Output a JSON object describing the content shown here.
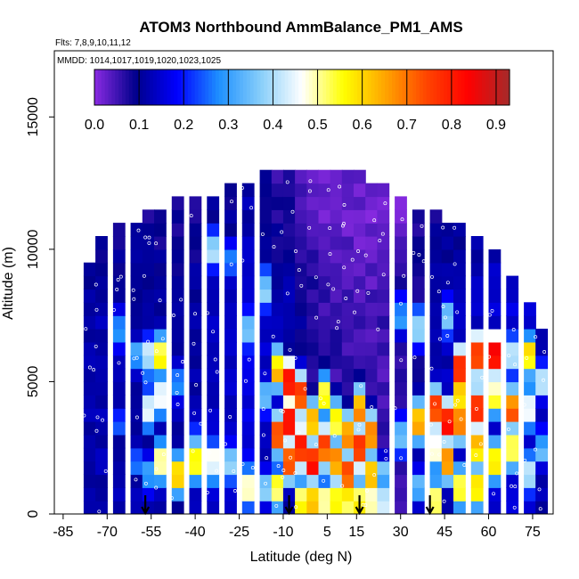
{
  "chart_data": {
    "type": "heatmap",
    "title": "ATOM3 Northbound AmmBalance_PM1_AMS",
    "flights_note": "Flts: 7,8,9,10,11,12",
    "dates_note": "MMDD: 1014,1017,1019,1020,1023,1025",
    "xlabel": "Latitude (deg N)",
    "ylabel": "Altitude (m)",
    "x_ticks": [
      -85,
      -70,
      -55,
      -40,
      -25,
      -10,
      5,
      15,
      30,
      45,
      60,
      75
    ],
    "y_ticks": [
      0,
      5000,
      10000,
      15000
    ],
    "xlim": [
      -88,
      82
    ],
    "ylim": [
      0,
      17500
    ],
    "colorbar": {
      "ticks": [
        0.0,
        0.1,
        0.2,
        0.3,
        0.4,
        0.5,
        0.6,
        0.7,
        0.8,
        0.9
      ],
      "tick_labels": [
        "0.0",
        "0.1",
        "0.2",
        "0.3",
        "0.4",
        "0.5",
        "0.6",
        "0.7",
        "0.8",
        "0.9"
      ],
      "range": [
        0,
        0.93
      ],
      "colors": [
        "#8a2be2",
        "#00008b",
        "#0000ff",
        "#1e90ff",
        "#87cefa",
        "#ffffff",
        "#ffff00",
        "#ffa500",
        "#ff4500",
        "#ff0000",
        "#a52a2a"
      ]
    },
    "arrows_latitude": [
      -57,
      -8,
      16,
      40
    ],
    "column_width_deg": 2,
    "row_height_m": 500,
    "columns": [
      {
        "lat": -76,
        "ztop": 9500,
        "bg": 0.12,
        "hot": []
      },
      {
        "lat": -72,
        "ztop": 10500,
        "bg": 0.12,
        "hot": []
      },
      {
        "lat": -66,
        "ztop": 11000,
        "bg": 0.12,
        "hot": [
          [
            7000,
            0.3
          ],
          [
            3500,
            0.22
          ]
        ]
      },
      {
        "lat": -60,
        "ztop": 11000,
        "bg": 0.12,
        "hot": [
          [
            6000,
            0.3
          ],
          [
            2000,
            0.25
          ]
        ]
      },
      {
        "lat": -56,
        "ztop": 11500,
        "bg": 0.12,
        "hot": [
          [
            6000,
            0.45
          ],
          [
            4000,
            0.5
          ],
          [
            1500,
            0.3
          ]
        ]
      },
      {
        "lat": -52,
        "ztop": 11500,
        "bg": 0.12,
        "hot": [
          [
            6000,
            0.6
          ],
          [
            4500,
            0.5
          ],
          [
            2000,
            0.55
          ]
        ]
      },
      {
        "lat": -46,
        "ztop": 12000,
        "bg": 0.12,
        "hot": [
          [
            5000,
            0.3
          ],
          [
            1500,
            0.65
          ]
        ]
      },
      {
        "lat": -40,
        "ztop": 12000,
        "bg": 0.12,
        "hot": [
          [
            3000,
            0.25
          ],
          [
            2000,
            0.6
          ]
        ]
      },
      {
        "lat": -34,
        "ztop": 12000,
        "bg": 0.14,
        "hot": [
          [
            10000,
            0.4
          ],
          [
            2000,
            0.5
          ]
        ]
      },
      {
        "lat": -28,
        "ztop": 12500,
        "bg": 0.14,
        "hot": [
          [
            9500,
            0.3
          ],
          [
            2000,
            0.4
          ]
        ]
      },
      {
        "lat": -22,
        "ztop": 12500,
        "bg": 0.16,
        "hot": [
          [
            7000,
            0.4
          ],
          [
            1000,
            0.5
          ]
        ]
      },
      {
        "lat": -16,
        "ztop": 13000,
        "bg": 0.14,
        "hot": [
          [
            8500,
            0.4
          ],
          [
            4500,
            0.35
          ],
          [
            1000,
            0.4
          ]
        ]
      },
      {
        "lat": -12,
        "ztop": 13000,
        "bg": 0.12,
        "hot": [
          [
            5500,
            0.65
          ],
          [
            3000,
            0.75
          ],
          [
            1000,
            0.55
          ]
        ]
      },
      {
        "lat": -8,
        "ztop": 13000,
        "bg": 0.12,
        "hot": [
          [
            5000,
            0.9
          ],
          [
            3500,
            0.88
          ],
          [
            2000,
            0.8
          ]
        ]
      },
      {
        "lat": -4,
        "ztop": 13000,
        "bg": 0.1,
        "hot": [
          [
            4500,
            0.8
          ],
          [
            2500,
            0.85
          ],
          [
            500,
            0.6
          ]
        ]
      },
      {
        "lat": 0,
        "ztop": 13000,
        "bg": 0.08,
        "hot": [
          [
            3500,
            0.7
          ],
          [
            2000,
            0.85
          ],
          [
            500,
            0.65
          ]
        ]
      },
      {
        "lat": 4,
        "ztop": 13000,
        "bg": 0.06,
        "hot": [
          [
            4500,
            0.6
          ],
          [
            2500,
            0.78
          ],
          [
            500,
            0.55
          ]
        ]
      },
      {
        "lat": 8,
        "ztop": 13000,
        "bg": 0.06,
        "hot": [
          [
            3500,
            0.62
          ],
          [
            2000,
            0.72
          ],
          [
            500,
            0.6
          ]
        ]
      },
      {
        "lat": 12,
        "ztop": 13000,
        "bg": 0.06,
        "hot": [
          [
            3000,
            0.72
          ],
          [
            1500,
            0.8
          ],
          [
            500,
            0.6
          ]
        ]
      },
      {
        "lat": 16,
        "ztop": 13000,
        "bg": 0.05,
        "hot": [
          [
            4000,
            0.7
          ],
          [
            2500,
            0.85
          ],
          [
            500,
            0.6
          ]
        ]
      },
      {
        "lat": 20,
        "ztop": 12500,
        "bg": 0.05,
        "hot": [
          [
            3000,
            0.75
          ],
          [
            1500,
            0.7
          ],
          [
            500,
            0.55
          ]
        ]
      },
      {
        "lat": 24,
        "ztop": 12500,
        "bg": 0.05,
        "hot": [
          [
            1500,
            0.35
          ],
          [
            500,
            0.45
          ]
        ]
      },
      {
        "lat": 30,
        "ztop": 12000,
        "bg": 0.06,
        "hot": [
          [
            7500,
            0.3
          ],
          [
            3000,
            0.35
          ]
        ]
      },
      {
        "lat": 36,
        "ztop": 11500,
        "bg": 0.1,
        "hot": [
          [
            7000,
            0.4
          ],
          [
            3500,
            0.7
          ],
          [
            1000,
            0.35
          ]
        ]
      },
      {
        "lat": 42,
        "ztop": 11500,
        "bg": 0.12,
        "hot": [
          [
            4000,
            0.8
          ],
          [
            2500,
            0.5
          ],
          [
            500,
            0.6
          ]
        ]
      },
      {
        "lat": 46,
        "ztop": 11000,
        "bg": 0.13,
        "hot": [
          [
            7500,
            0.4
          ],
          [
            3500,
            0.85
          ],
          [
            2000,
            0.7
          ]
        ]
      },
      {
        "lat": 50,
        "ztop": 11000,
        "bg": 0.13,
        "hot": [
          [
            5500,
            0.8
          ],
          [
            4500,
            0.65
          ],
          [
            3500,
            0.75
          ],
          [
            1000,
            0.55
          ]
        ]
      },
      {
        "lat": 56,
        "ztop": 10500,
        "bg": 0.14,
        "hot": [
          [
            6000,
            0.82
          ],
          [
            4000,
            0.8
          ],
          [
            2500,
            0.65
          ],
          [
            1000,
            0.6
          ]
        ]
      },
      {
        "lat": 62,
        "ztop": 10000,
        "bg": 0.15,
        "hot": [
          [
            6000,
            0.88
          ],
          [
            4500,
            0.55
          ],
          [
            2000,
            0.6
          ]
        ]
      },
      {
        "lat": 68,
        "ztop": 9000,
        "bg": 0.16,
        "hot": [
          [
            6000,
            0.45
          ],
          [
            4000,
            0.75
          ],
          [
            2500,
            0.6
          ]
        ]
      },
      {
        "lat": 74,
        "ztop": 8000,
        "bg": 0.15,
        "hot": [
          [
            6000,
            0.6
          ],
          [
            4000,
            0.5
          ],
          [
            1500,
            0.45
          ]
        ]
      },
      {
        "lat": 78,
        "ztop": 7000,
        "bg": 0.12,
        "hot": [
          [
            5000,
            0.4
          ],
          [
            2500,
            0.35
          ]
        ]
      }
    ]
  }
}
